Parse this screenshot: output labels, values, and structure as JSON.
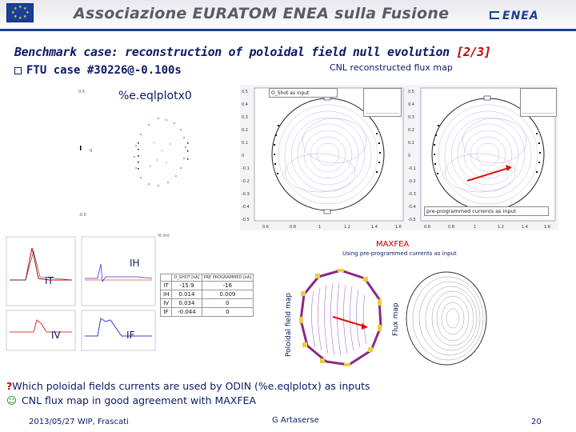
{
  "header": {
    "association_title": "Associazione EURATOM ENEA sulla Fusione",
    "enea_logo": "ENEA"
  },
  "slide": {
    "title_main": "Benchmark case: reconstruction of poloidal field null evolution",
    "title_page": "[2/3]",
    "case_line": "FTU case #30226@-0.100s",
    "cnl_label": "CNL reconstructed flux map"
  },
  "left_plot": {
    "label": "%e.eqlplotx0"
  },
  "mid_plot": {
    "title_box": "O_Shot as input",
    "y_ticks": [
      "0.5",
      "0.4",
      "0.3",
      "0.2",
      "0.1",
      "0",
      "-0.1",
      "-0.2",
      "-0.3",
      "-0.4",
      "-0.5"
    ],
    "x_ticks": [
      "0.6",
      "0.8",
      "1",
      "1.2",
      "1.4",
      "1.6"
    ]
  },
  "right_plot": {
    "title_box": "pre-programmed currents as input",
    "y_ticks": [
      "0.5",
      "0.4",
      "0.3",
      "0.2",
      "0.1",
      "0",
      "-0.1",
      "-0.2",
      "-0.3",
      "-0.4",
      "-0.5"
    ],
    "x_ticks": [
      "0.6",
      "0.8",
      "1",
      "1.2",
      "1.4",
      "1.6"
    ]
  },
  "maxfea": {
    "label": "MAXFEA",
    "sublabel": "Using pre-programmed currents as input",
    "poloidal_axis": "Poloidal field map",
    "flux_axis": "Flux map"
  },
  "waveforms": {
    "labels": {
      "IH": "IH",
      "IT": "IT",
      "IV": "IV",
      "IF": "IF"
    }
  },
  "currents_table": {
    "headers": [
      "",
      "O_SHOT [kA]",
      "PRE PROGRAMMED [kA]"
    ],
    "rows": [
      [
        "IT",
        "-15.9",
        "-16"
      ],
      [
        "IH",
        "0.014",
        "0.009"
      ],
      [
        "IV",
        "0.034",
        "0"
      ],
      [
        "IF",
        "-0.044",
        "0"
      ]
    ]
  },
  "notes": {
    "line1": "Which poloidal fields currents are used by ODIN (%e.eqlplotx) as inputs",
    "line2": "CNL flux map in good agreement with MAXFEA"
  },
  "footer": {
    "date_place": "2013/05/27  WIP, Frascati",
    "author": "G Artaserse",
    "page": "20"
  },
  "colors": {
    "title_blue": "#0b1a66",
    "page_red": "#c00000",
    "enea_blue": "#1b3f8f"
  }
}
